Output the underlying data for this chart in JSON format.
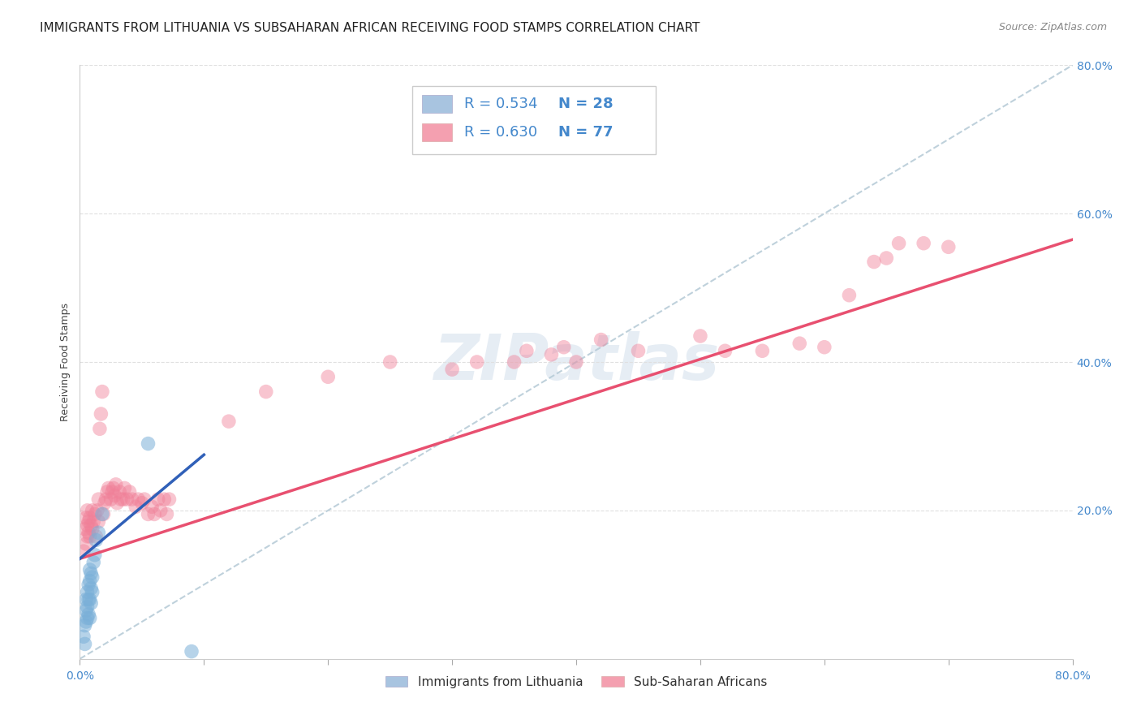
{
  "title": "IMMIGRANTS FROM LITHUANIA VS SUBSAHARAN AFRICAN RECEIVING FOOD STAMPS CORRELATION CHART",
  "source": "Source: ZipAtlas.com",
  "ylabel": "Receiving Food Stamps",
  "watermark": "ZIPatlas",
  "blue_scatter_x": [
    0.003,
    0.004,
    0.004,
    0.005,
    0.005,
    0.005,
    0.006,
    0.006,
    0.006,
    0.007,
    0.007,
    0.007,
    0.008,
    0.008,
    0.008,
    0.008,
    0.009,
    0.009,
    0.009,
    0.01,
    0.01,
    0.011,
    0.012,
    0.013,
    0.015,
    0.018,
    0.055,
    0.09
  ],
  "blue_scatter_y": [
    0.03,
    0.02,
    0.045,
    0.05,
    0.065,
    0.08,
    0.055,
    0.07,
    0.09,
    0.06,
    0.08,
    0.1,
    0.055,
    0.08,
    0.105,
    0.12,
    0.075,
    0.095,
    0.115,
    0.09,
    0.11,
    0.13,
    0.14,
    0.16,
    0.17,
    0.195,
    0.29,
    0.01
  ],
  "pink_scatter_x": [
    0.003,
    0.004,
    0.005,
    0.005,
    0.006,
    0.006,
    0.006,
    0.007,
    0.007,
    0.008,
    0.008,
    0.009,
    0.01,
    0.01,
    0.011,
    0.012,
    0.013,
    0.014,
    0.015,
    0.015,
    0.016,
    0.017,
    0.018,
    0.019,
    0.02,
    0.021,
    0.022,
    0.023,
    0.025,
    0.026,
    0.027,
    0.028,
    0.029,
    0.03,
    0.032,
    0.033,
    0.035,
    0.036,
    0.038,
    0.04,
    0.042,
    0.045,
    0.047,
    0.05,
    0.052,
    0.055,
    0.058,
    0.06,
    0.063,
    0.065,
    0.068,
    0.07,
    0.072,
    0.12,
    0.15,
    0.2,
    0.25,
    0.3,
    0.32,
    0.35,
    0.36,
    0.38,
    0.39,
    0.4,
    0.42,
    0.45,
    0.5,
    0.52,
    0.55,
    0.58,
    0.6,
    0.62,
    0.64,
    0.65,
    0.66,
    0.68,
    0.7
  ],
  "pink_scatter_y": [
    0.145,
    0.175,
    0.155,
    0.19,
    0.165,
    0.18,
    0.2,
    0.17,
    0.185,
    0.165,
    0.19,
    0.18,
    0.175,
    0.2,
    0.185,
    0.195,
    0.165,
    0.2,
    0.185,
    0.215,
    0.31,
    0.33,
    0.36,
    0.195,
    0.21,
    0.215,
    0.225,
    0.23,
    0.215,
    0.225,
    0.23,
    0.22,
    0.235,
    0.21,
    0.225,
    0.215,
    0.215,
    0.23,
    0.215,
    0.225,
    0.215,
    0.205,
    0.215,
    0.21,
    0.215,
    0.195,
    0.205,
    0.195,
    0.215,
    0.2,
    0.215,
    0.195,
    0.215,
    0.32,
    0.36,
    0.38,
    0.4,
    0.39,
    0.4,
    0.4,
    0.415,
    0.41,
    0.42,
    0.4,
    0.43,
    0.415,
    0.435,
    0.415,
    0.415,
    0.425,
    0.42,
    0.49,
    0.535,
    0.54,
    0.56,
    0.56,
    0.555
  ],
  "blue_line_x": [
    0.0,
    0.1
  ],
  "blue_line_y": [
    0.135,
    0.275
  ],
  "pink_line_x": [
    0.0,
    0.8
  ],
  "pink_line_y": [
    0.135,
    0.565
  ],
  "dashed_line_x": [
    0.0,
    0.8
  ],
  "dashed_line_y": [
    0.0,
    0.8
  ],
  "xlim": [
    0.0,
    0.8
  ],
  "ylim": [
    0.0,
    0.8
  ],
  "grid_yticks": [
    0.2,
    0.4,
    0.6,
    0.8
  ],
  "grid_color": "#e0e0e0",
  "blue_color": "#7ab0d8",
  "pink_color": "#f08098",
  "dashed_color": "#b8ccd8",
  "blue_line_color": "#3060b8",
  "pink_line_color": "#e85070",
  "legend_text_color": "#4488cc",
  "title_fontsize": 11,
  "axis_label_fontsize": 9,
  "tick_fontsize": 10,
  "legend_fontsize": 13
}
